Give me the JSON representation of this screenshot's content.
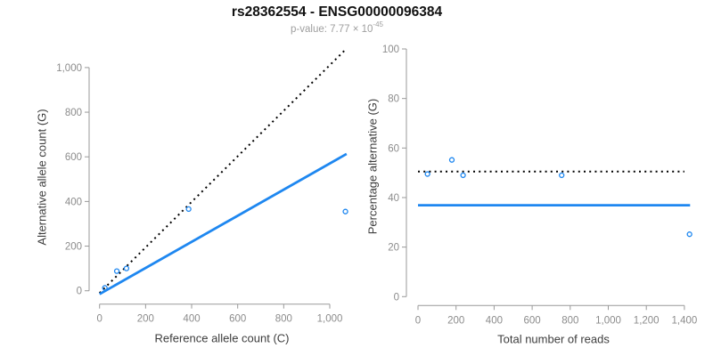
{
  "header": {
    "title": "rs28362554 - ENSG00000096384",
    "subtitle_prefix": "p-value: 7.77 × 10",
    "subtitle_exponent": "-45"
  },
  "colors": {
    "accent_blue": "#1e87f0",
    "dotted_line": "#000000",
    "axis": "#999999",
    "tick_label": "#8c8c8c",
    "axis_title": "#3d3d3d",
    "title_text": "#111111",
    "subtitle_text": "#9e9e9e"
  },
  "chart_data": [
    {
      "type": "scatter",
      "panel": "left",
      "xlabel": "Reference allele count (C)",
      "ylabel": "Alternative allele count (G)",
      "xlim": [
        0,
        1080
      ],
      "ylim": [
        0,
        1080
      ],
      "xticks": [
        0,
        200,
        400,
        600,
        800,
        1000
      ],
      "yticks": [
        0,
        200,
        400,
        600,
        800,
        1000
      ],
      "grid": false,
      "legend": "none",
      "points": [
        {
          "x": 23,
          "y": 13
        },
        {
          "x": 75,
          "y": 88
        },
        {
          "x": 117,
          "y": 100
        },
        {
          "x": 387,
          "y": 366
        },
        {
          "x": 1068,
          "y": 355
        }
      ],
      "lines": [
        {
          "name": "identity-line",
          "style": "dotted",
          "color_key": "dotted_line",
          "x": [
            0,
            1068
          ],
          "y": [
            -10,
            1080
          ]
        },
        {
          "name": "regression-line",
          "style": "solid",
          "color_key": "accent_blue",
          "x": [
            0,
            1073
          ],
          "y": [
            -15,
            613
          ]
        }
      ]
    },
    {
      "type": "scatter",
      "panel": "right",
      "xlabel": "Total number of reads",
      "ylabel": "Percentage alternative (G)",
      "xlim": [
        0,
        1450
      ],
      "ylim": [
        0,
        100
      ],
      "xticks": [
        0,
        200,
        400,
        600,
        800,
        1000,
        1200,
        1400
      ],
      "yticks": [
        0,
        20,
        40,
        60,
        80,
        100
      ],
      "grid": false,
      "legend": "none",
      "points": [
        {
          "x": 50,
          "y": 49.5
        },
        {
          "x": 178,
          "y": 55.2
        },
        {
          "x": 237,
          "y": 49.0
        },
        {
          "x": 755,
          "y": 49.0
        },
        {
          "x": 1427,
          "y": 25.2
        }
      ],
      "lines": [
        {
          "name": "expected-50pct-line",
          "style": "dotted",
          "color_key": "dotted_line",
          "x": [
            0,
            1400
          ],
          "y": [
            50.5,
            50.5
          ]
        },
        {
          "name": "mean-percentage-line",
          "style": "solid",
          "color_key": "accent_blue",
          "x": [
            0,
            1430
          ],
          "y": [
            36.9,
            36.9
          ]
        }
      ]
    }
  ]
}
